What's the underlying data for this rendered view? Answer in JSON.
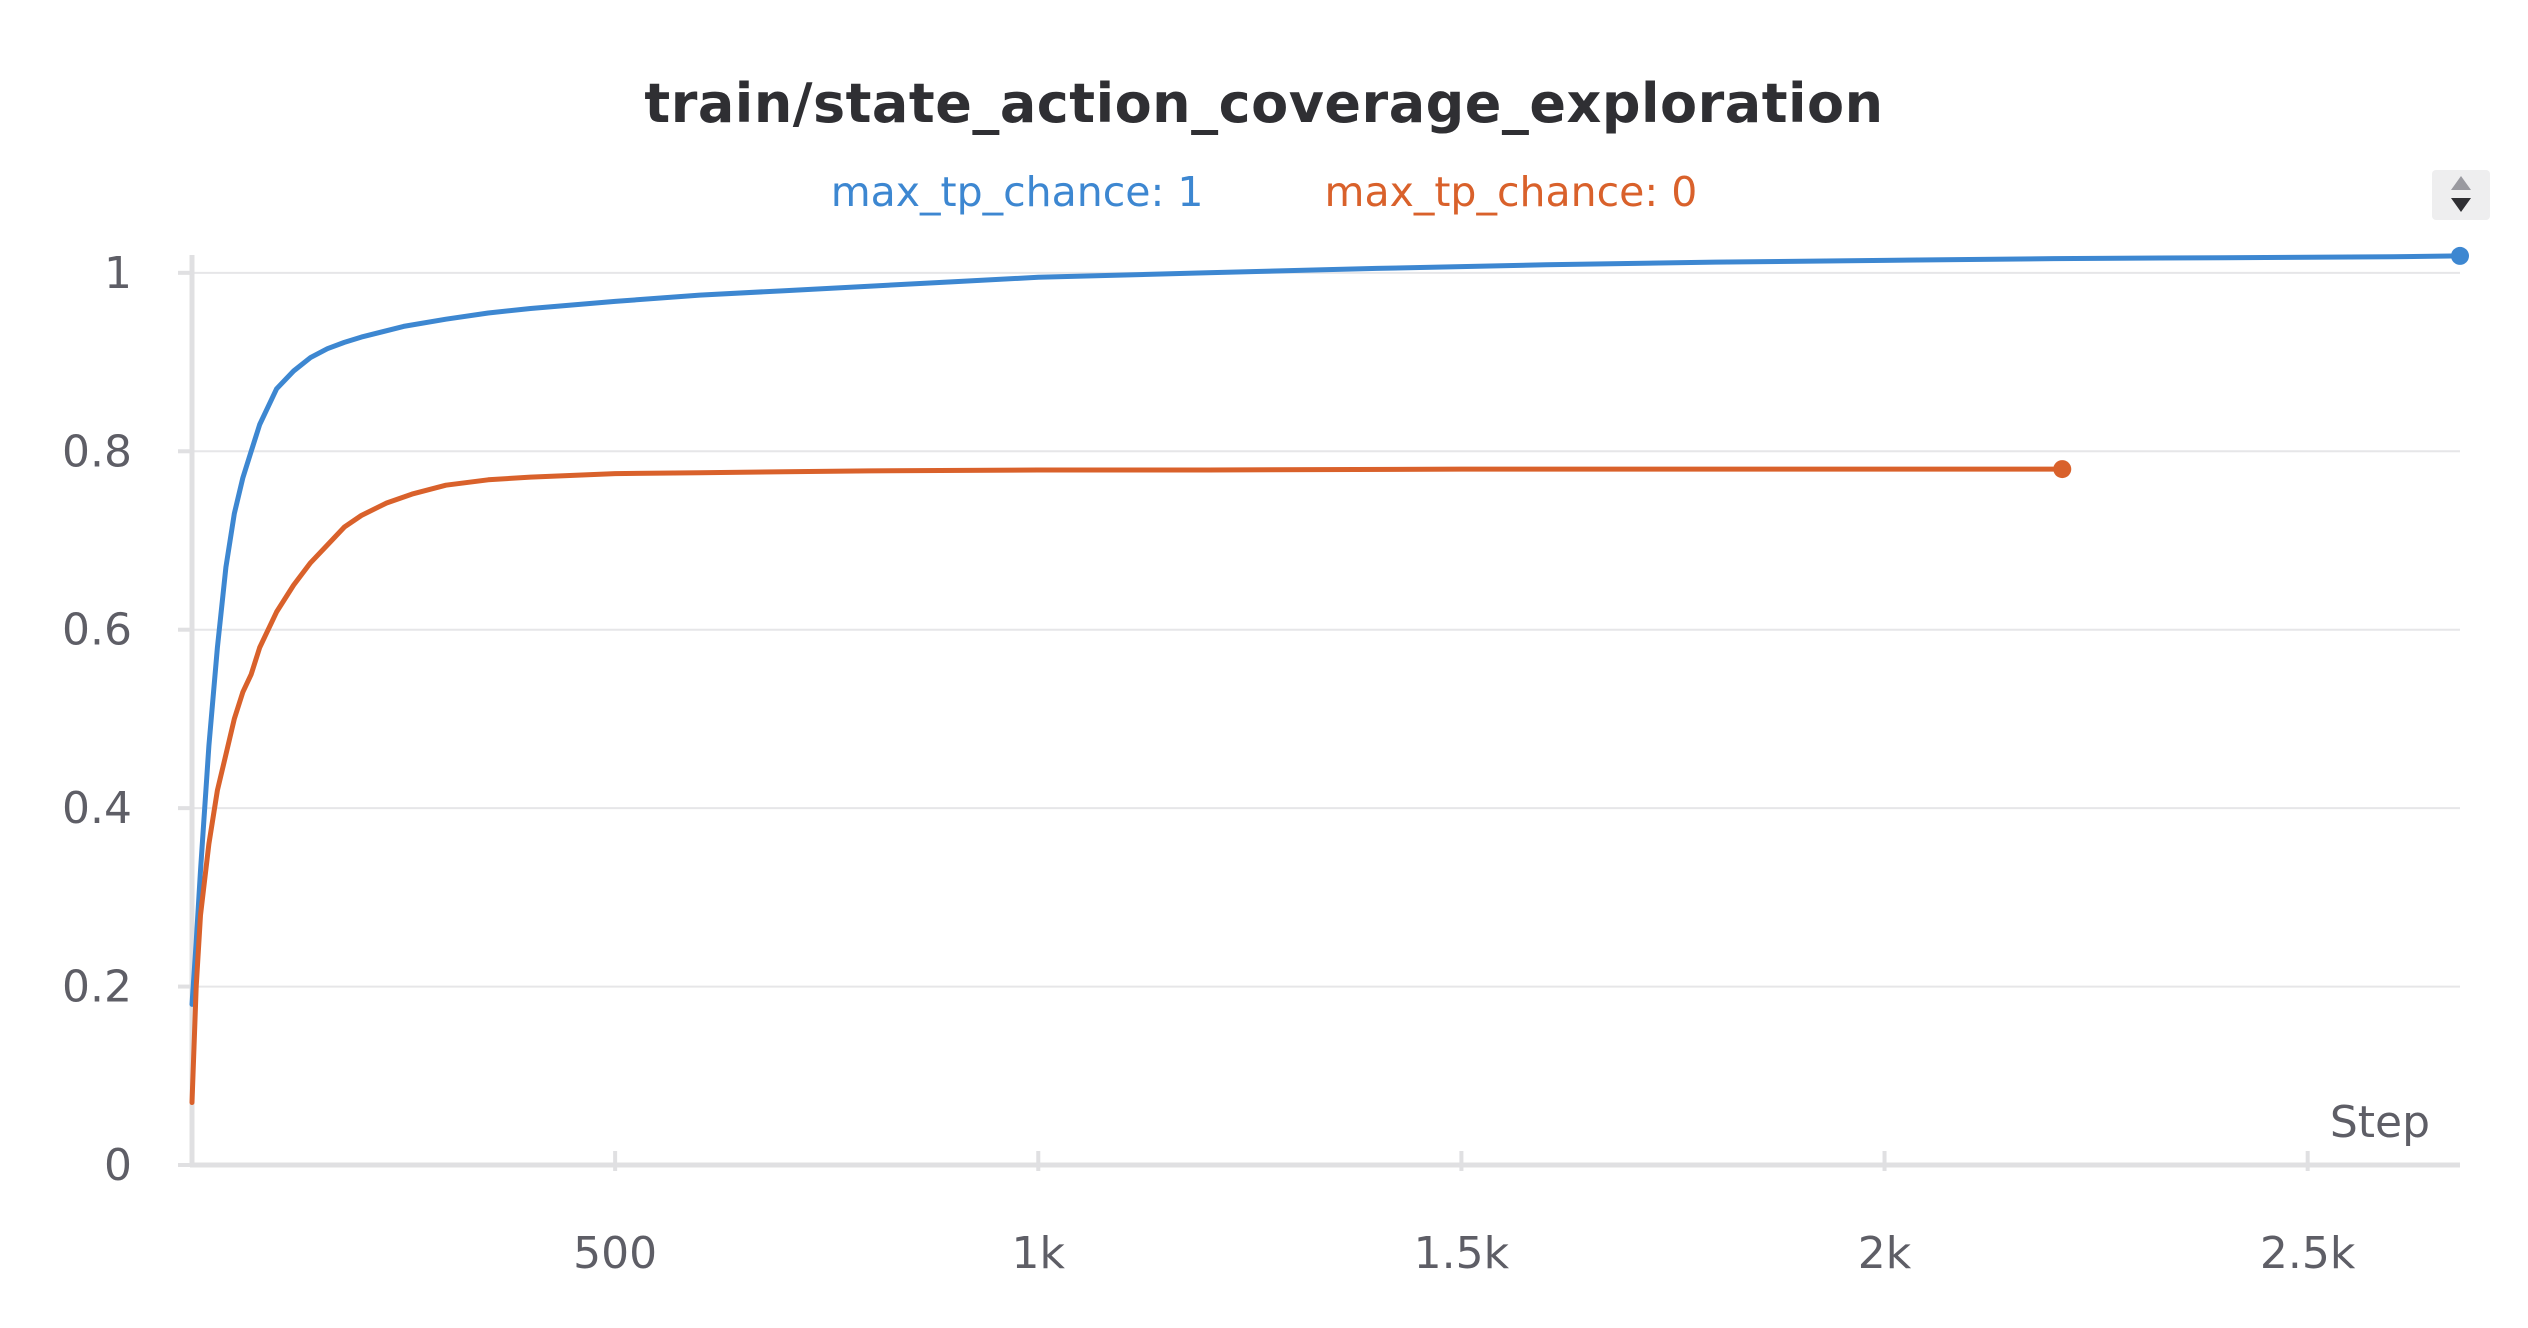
{
  "chart_data": {
    "type": "line",
    "title": "train/state_action_coverage_exploration",
    "xlabel": "Step",
    "ylabel": "",
    "xlim": [
      0,
      2680
    ],
    "ylim": [
      0,
      1.02
    ],
    "x_ticks": [
      500,
      1000,
      1500,
      2000,
      2500
    ],
    "x_tick_labels": [
      "500",
      "1k",
      "1.5k",
      "2k",
      "2.5k"
    ],
    "y_ticks": [
      0,
      0.2,
      0.4,
      0.6,
      0.8,
      1
    ],
    "y_tick_labels": [
      "0",
      "0.2",
      "0.4",
      "0.6",
      "0.8",
      "1"
    ],
    "grid": true,
    "legend_position": "top-center",
    "series": [
      {
        "name": "max_tp_chance: 1",
        "color": "#3d87d1",
        "x": [
          0,
          5,
          10,
          20,
          30,
          40,
          50,
          60,
          70,
          80,
          100,
          120,
          140,
          160,
          180,
          200,
          250,
          300,
          350,
          400,
          500,
          600,
          700,
          800,
          900,
          1000,
          1200,
          1400,
          1600,
          1800,
          2000,
          2200,
          2400,
          2600,
          2680
        ],
        "y": [
          0.18,
          0.25,
          0.33,
          0.47,
          0.58,
          0.67,
          0.73,
          0.77,
          0.8,
          0.83,
          0.87,
          0.89,
          0.905,
          0.915,
          0.922,
          0.928,
          0.94,
          0.948,
          0.955,
          0.96,
          0.968,
          0.975,
          0.98,
          0.985,
          0.99,
          0.995,
          1.0,
          1.005,
          1.009,
          1.012,
          1.014,
          1.016,
          1.017,
          1.018,
          1.019
        ]
      },
      {
        "name": "max_tp_chance: 0",
        "color": "#d9612b",
        "x": [
          0,
          5,
          10,
          20,
          30,
          40,
          50,
          60,
          70,
          80,
          100,
          120,
          140,
          160,
          180,
          200,
          230,
          260,
          300,
          350,
          400,
          450,
          500,
          600,
          700,
          800,
          1000,
          1200,
          1500,
          1800,
          2000,
          2100,
          2210
        ],
        "y": [
          0.07,
          0.2,
          0.28,
          0.36,
          0.42,
          0.46,
          0.5,
          0.53,
          0.55,
          0.58,
          0.62,
          0.65,
          0.675,
          0.695,
          0.715,
          0.728,
          0.742,
          0.752,
          0.762,
          0.768,
          0.771,
          0.773,
          0.775,
          0.776,
          0.777,
          0.778,
          0.779,
          0.779,
          0.78,
          0.78,
          0.78,
          0.78,
          0.78
        ]
      }
    ]
  }
}
